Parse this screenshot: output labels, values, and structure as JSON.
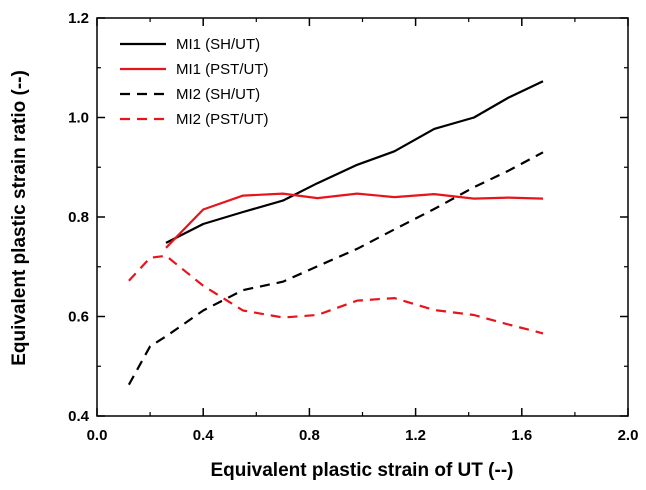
{
  "chart_data": {
    "type": "line",
    "title": "",
    "xlabel": "Equivalent plastic strain of UT (--)",
    "ylabel": "Equivalent plastic strain ratio (--)",
    "xlim": [
      0.0,
      2.0
    ],
    "ylim": [
      0.4,
      1.2
    ],
    "xticks": [
      0.0,
      0.4,
      0.8,
      1.2,
      1.6,
      2.0
    ],
    "yticks": [
      0.4,
      0.6,
      0.8,
      1.0,
      1.2
    ],
    "xtick_labels": [
      "0.0",
      "0.4",
      "0.8",
      "1.2",
      "1.6",
      "2.0"
    ],
    "ytick_labels": [
      "0.4",
      "0.6",
      "0.8",
      "1.0",
      "1.2"
    ],
    "grid": false,
    "legend_position": "top-left",
    "series": [
      {
        "name": "MI1 (SH/UT)",
        "color": "#000000",
        "dash": "solid",
        "x": [
          0.26,
          0.4,
          0.55,
          0.7,
          0.83,
          0.98,
          1.12,
          1.27,
          1.42,
          1.55,
          1.68
        ],
        "y": [
          0.748,
          0.786,
          0.81,
          0.833,
          0.868,
          0.905,
          0.932,
          0.977,
          1.0,
          1.04,
          1.073
        ]
      },
      {
        "name": "MI1 (PST/UT)",
        "color": "#e8141b",
        "dash": "solid",
        "x": [
          0.26,
          0.4,
          0.55,
          0.7,
          0.83,
          0.98,
          1.12,
          1.27,
          1.42,
          1.55,
          1.68
        ],
        "y": [
          0.738,
          0.815,
          0.843,
          0.847,
          0.838,
          0.847,
          0.84,
          0.846,
          0.837,
          0.839,
          0.837
        ]
      },
      {
        "name": "MI2 (SH/UT)",
        "color": "#000000",
        "dash": "dashed",
        "x": [
          0.12,
          0.2,
          0.26,
          0.4,
          0.55,
          0.7,
          0.83,
          0.98,
          1.12,
          1.27,
          1.42,
          1.55,
          1.68
        ],
        "y": [
          0.463,
          0.54,
          0.56,
          0.612,
          0.653,
          0.67,
          0.701,
          0.736,
          0.775,
          0.816,
          0.86,
          0.893,
          0.93
        ]
      },
      {
        "name": "MI2 (PST/UT)",
        "color": "#e8141b",
        "dash": "dashed",
        "x": [
          0.12,
          0.2,
          0.26,
          0.4,
          0.55,
          0.7,
          0.83,
          0.98,
          1.12,
          1.27,
          1.42,
          1.55,
          1.68
        ],
        "y": [
          0.672,
          0.718,
          0.722,
          0.662,
          0.612,
          0.598,
          0.603,
          0.632,
          0.637,
          0.613,
          0.603,
          0.584,
          0.566
        ]
      }
    ]
  }
}
